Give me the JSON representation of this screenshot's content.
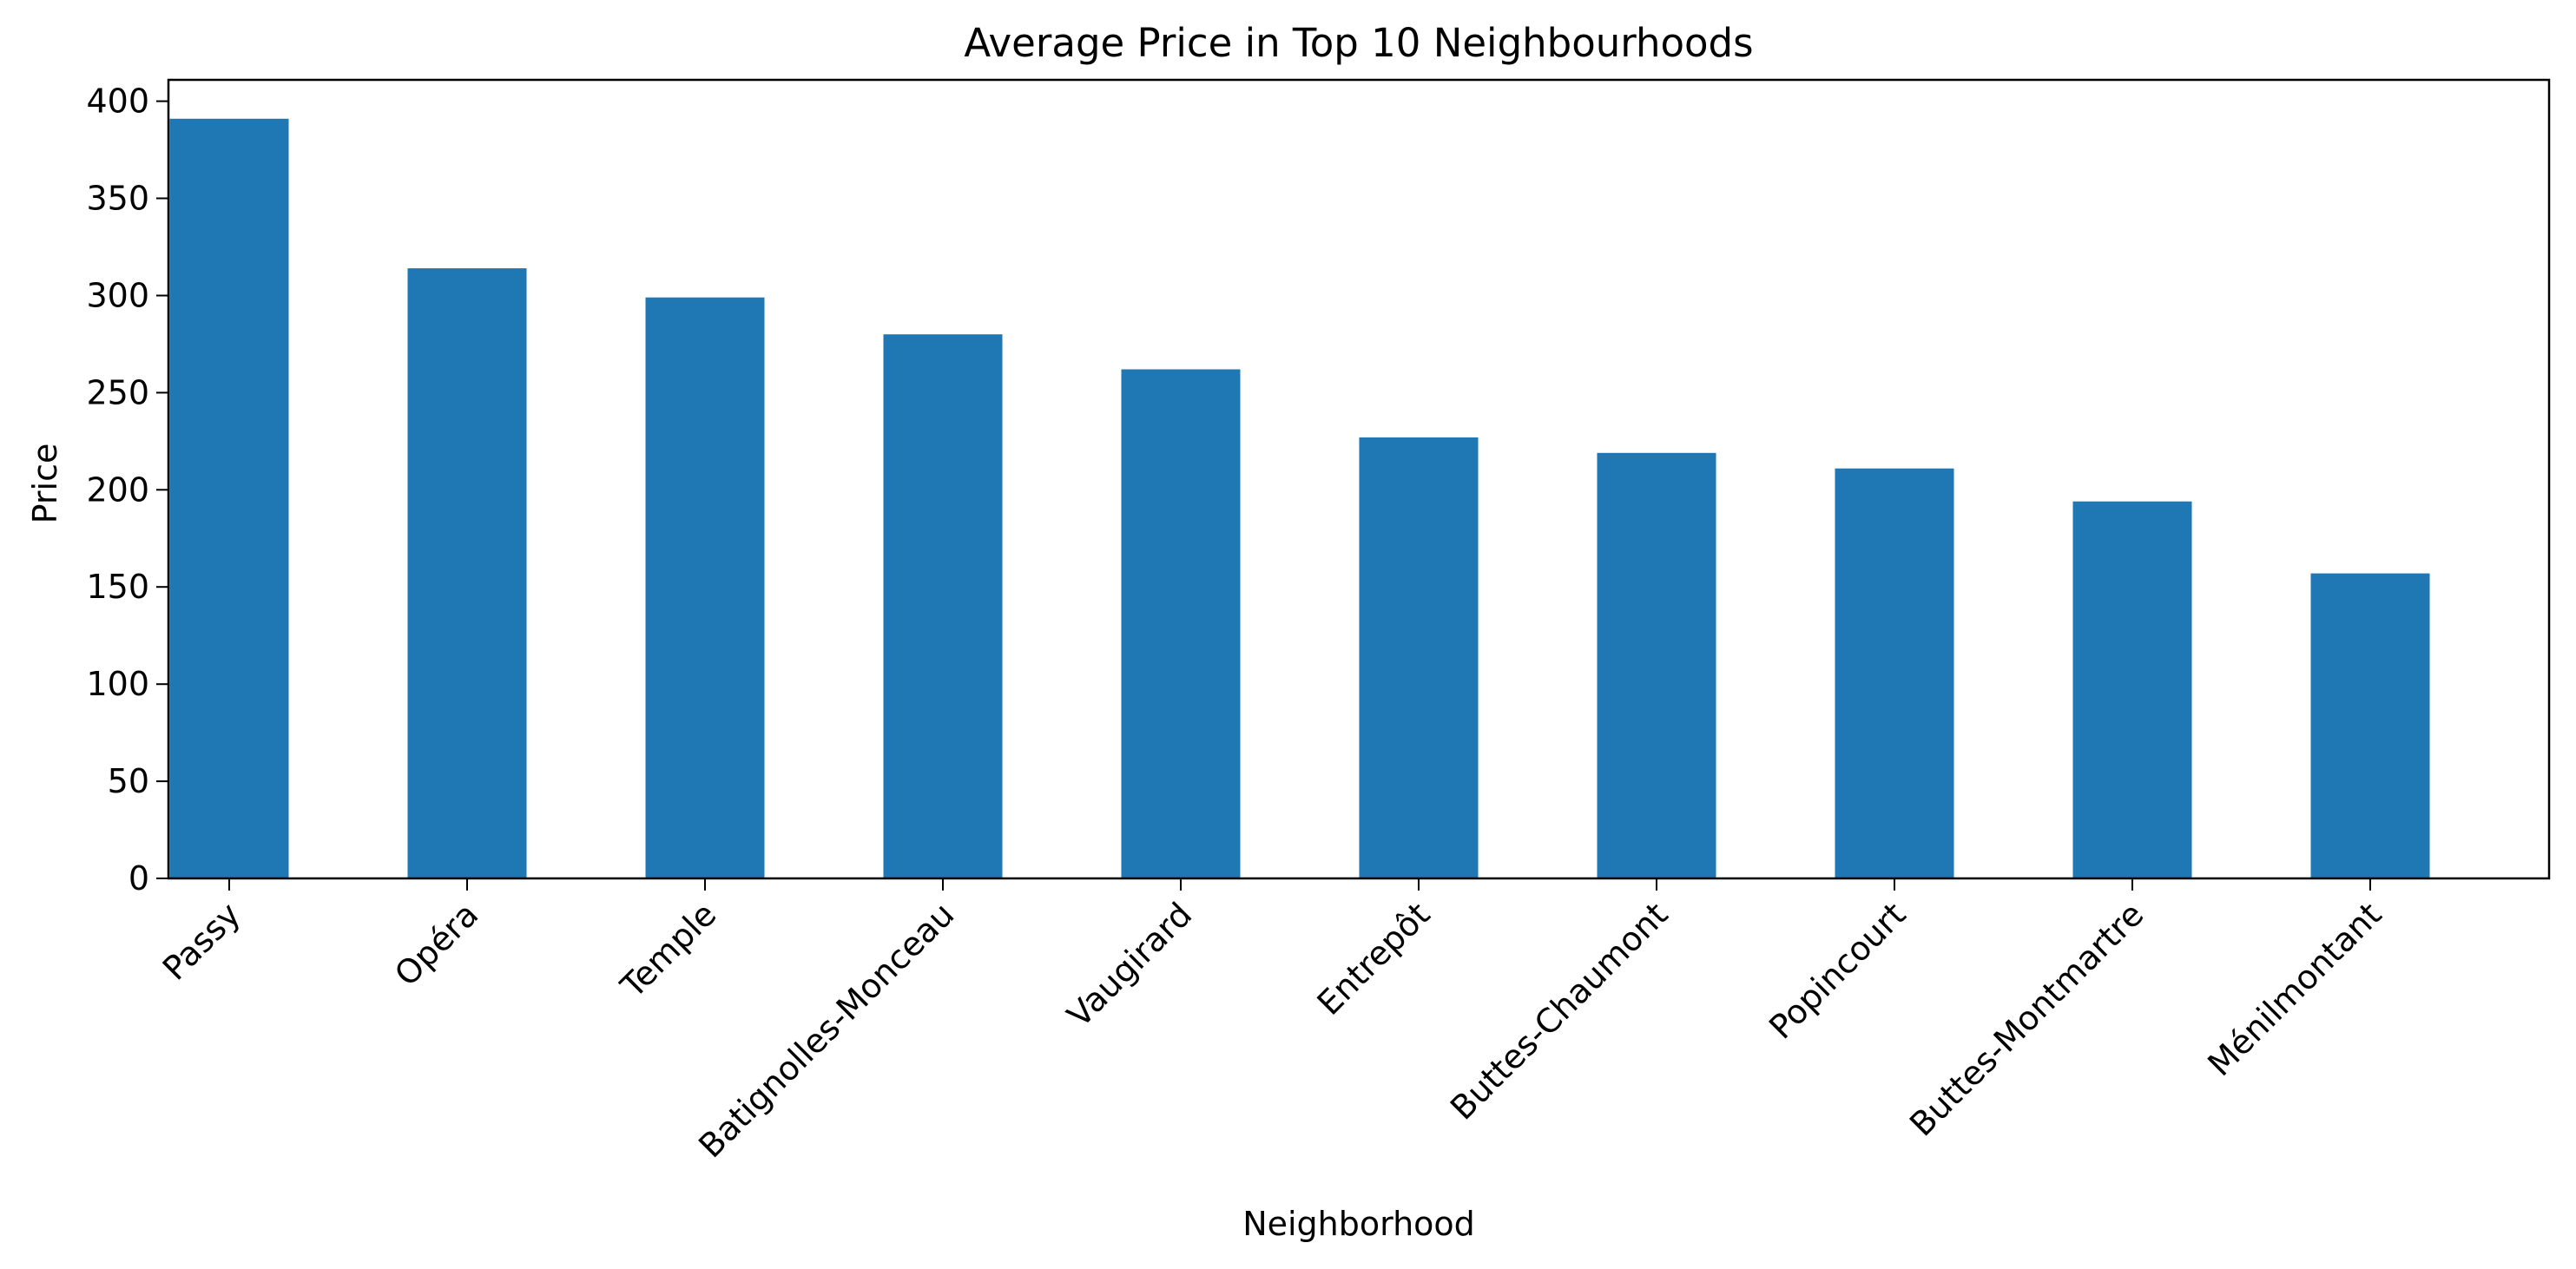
{
  "chart_data": {
    "type": "bar",
    "title": "Average Price in Top 10 Neighbourhoods",
    "xlabel": "Neighborhood",
    "ylabel": "Price",
    "categories": [
      "Passy",
      "Opéra",
      "Temple",
      "Batignolles-Monceau",
      "Vaugirard",
      "Entrepôt",
      "Buttes-Chaumont",
      "Popincourt",
      "Buttes-Montmartre",
      "Ménilmontant"
    ],
    "values": [
      391,
      314,
      299,
      280,
      262,
      227,
      219,
      211,
      194,
      157
    ],
    "ylim": [
      0,
      411
    ],
    "yticks": [
      0,
      50,
      100,
      150,
      200,
      250,
      300,
      350,
      400
    ],
    "bar_color": "#1f77b4",
    "grid": false,
    "legend": "none"
  }
}
